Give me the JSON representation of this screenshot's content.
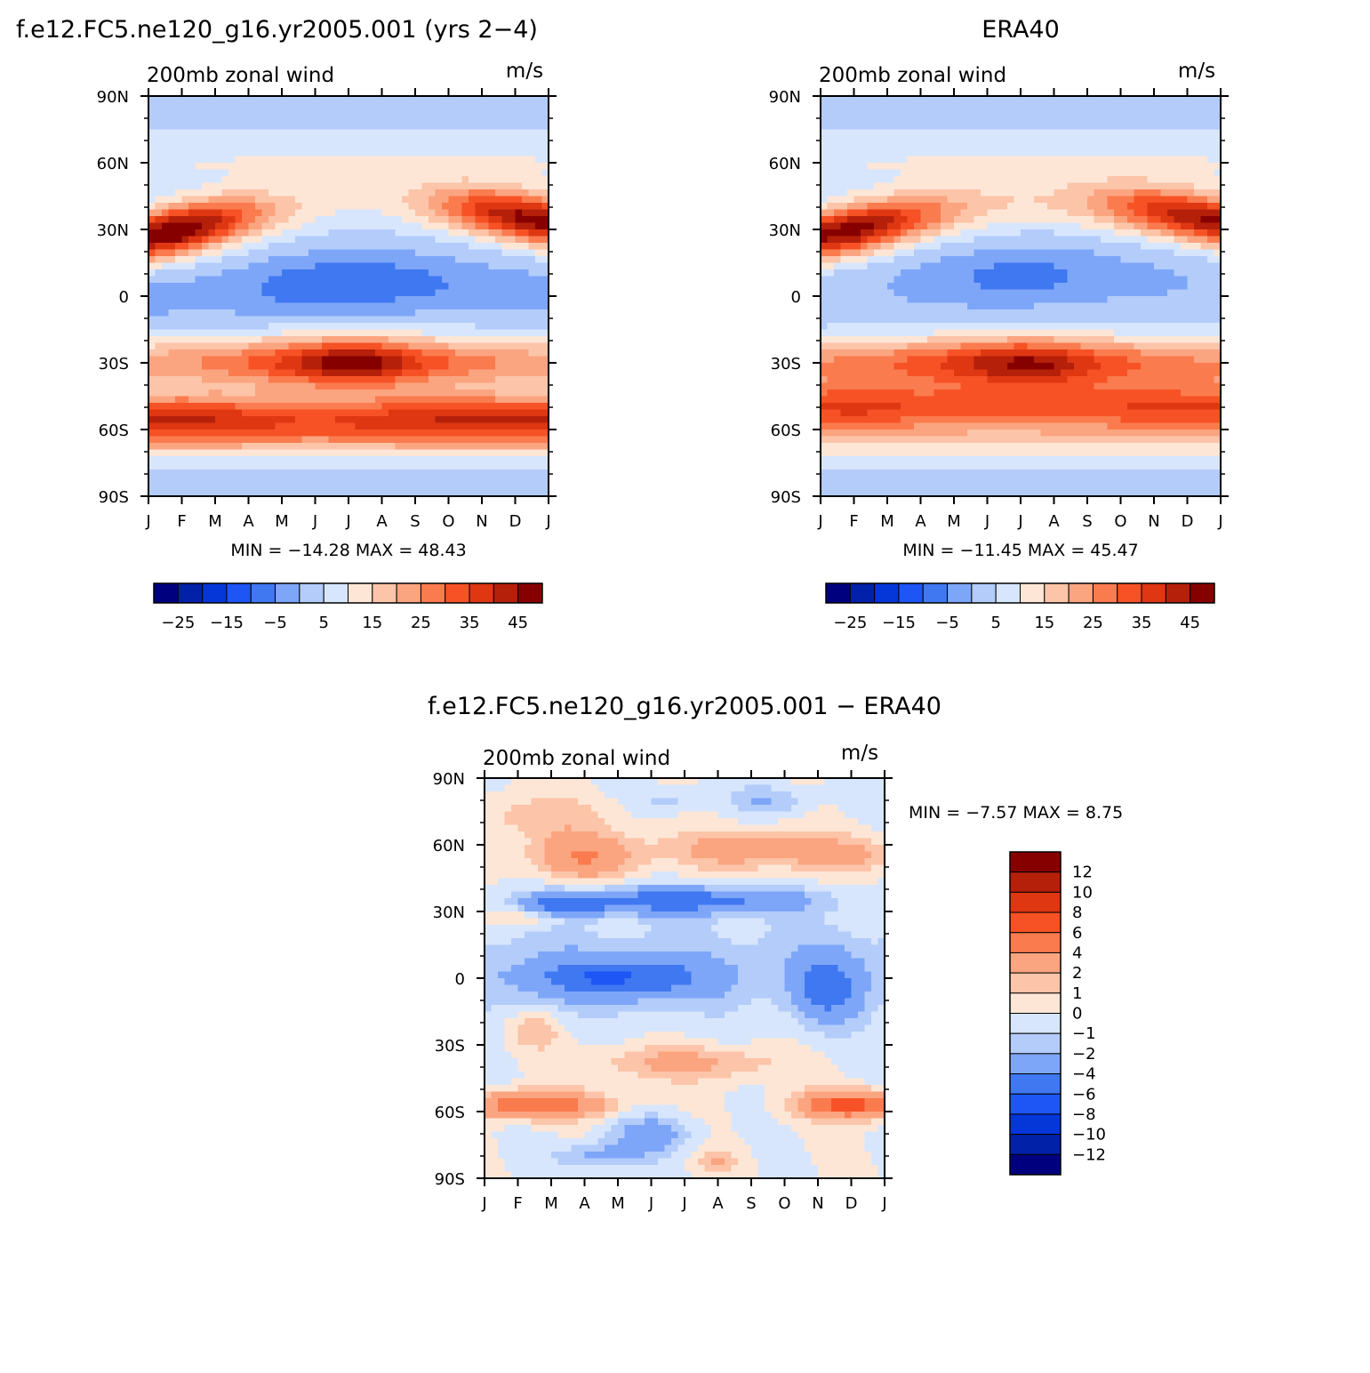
{
  "chart_data": [
    {
      "type": "heatmap",
      "title": "f.e12.FC5.ne120_g16.yr2005.001 (yrs 2−4)",
      "subtitle_left": "200mb zonal wind",
      "subtitle_right": "m/s",
      "xticks": [
        "J",
        "F",
        "M",
        "A",
        "M",
        "J",
        "J",
        "A",
        "S",
        "O",
        "N",
        "D",
        "J"
      ],
      "yticks": [
        "90N",
        "60N",
        "30N",
        "0",
        "30S",
        "60S",
        "90S"
      ],
      "ylim": [
        -90,
        90
      ],
      "stats": "MIN = −14.28 MAX =   48.43",
      "colorbar": {
        "orientation": "horizontal",
        "labels": [
          "−25",
          "−15",
          "−5",
          "5",
          "15",
          "25",
          "35",
          "45"
        ],
        "levels": [
          -30,
          -25,
          -20,
          -15,
          -10,
          -5,
          0,
          5,
          10,
          15,
          20,
          25,
          30,
          35,
          40,
          45,
          50
        ],
        "colors": [
          "#00007e",
          "#0021a8",
          "#0436d8",
          "#1e56f5",
          "#3f78f0",
          "#7ea6f8",
          "#b3ccfa",
          "#d7e6fd",
          "#fde6d6",
          "#fcc4a8",
          "#fba480",
          "#fa7b4e",
          "#f65225",
          "#de3712",
          "#b5200a",
          "#870000"
        ]
      },
      "field": {
        "jets": [
          {
            "lat": 30,
            "peak": 48,
            "month": 1.0,
            "strength_by_month": [
              44,
              48,
              38,
              25,
              14,
              8,
              6,
              7,
              12,
              22,
              34,
              42,
              44
            ]
          },
          {
            "lat": -30,
            "peak": 46,
            "month": 6.3,
            "strength_by_month": [
              18,
              20,
              22,
              26,
              32,
              40,
              46,
              42,
              32,
              26,
              22,
              20,
              18
            ]
          },
          {
            "lat": -55,
            "peak": 36,
            "month": 2.0,
            "strength_by_month": [
              33,
              34,
              33,
              30,
              28,
              27,
              28,
              30,
              32,
              33,
              34,
              33,
              33
            ]
          },
          {
            "lat": 0,
            "peak": -14,
            "month": 6.5,
            "strength_by_month": [
              -6,
              -5,
              -6,
              -8,
              -11,
              -13,
              -14,
              -13,
              -11,
              -9,
              -7,
              -6,
              -6
            ]
          }
        ]
      }
    },
    {
      "type": "heatmap",
      "title": "ERA40",
      "subtitle_left": "200mb zonal wind",
      "subtitle_right": "m/s",
      "xticks": [
        "J",
        "F",
        "M",
        "A",
        "M",
        "J",
        "J",
        "A",
        "S",
        "O",
        "N",
        "D",
        "J"
      ],
      "yticks": [
        "90N",
        "60N",
        "30N",
        "0",
        "30S",
        "60S",
        "90S"
      ],
      "ylim": [
        -90,
        90
      ],
      "stats": "MIN = −11.45 MAX =   45.47",
      "colorbar": {
        "orientation": "horizontal",
        "labels": [
          "−25",
          "−15",
          "−5",
          "5",
          "15",
          "25",
          "35",
          "45"
        ],
        "levels": [
          -30,
          -25,
          -20,
          -15,
          -10,
          -5,
          0,
          5,
          10,
          15,
          20,
          25,
          30,
          35,
          40,
          45,
          50
        ],
        "colors": [
          "#00007e",
          "#0021a8",
          "#0436d8",
          "#1e56f5",
          "#3f78f0",
          "#7ea6f8",
          "#b3ccfa",
          "#d7e6fd",
          "#fde6d6",
          "#fcc4a8",
          "#fba480",
          "#fa7b4e",
          "#f65225",
          "#de3712",
          "#b5200a",
          "#870000"
        ]
      },
      "field": {
        "jets": [
          {
            "lat": 30,
            "peak": 45,
            "month": 1.0,
            "strength_by_month": [
              42,
              45,
              38,
              27,
              18,
              12,
              10,
              11,
              16,
              24,
              34,
              40,
              42
            ]
          },
          {
            "lat": -30,
            "peak": 42,
            "month": 6.5,
            "strength_by_month": [
              20,
              22,
              24,
              27,
              32,
              38,
              42,
              40,
              32,
              27,
              23,
              21,
              20
            ]
          },
          {
            "lat": -50,
            "peak": 32,
            "month": 2.0,
            "strength_by_month": [
              30,
              31,
              30,
              28,
              27,
              26,
              26,
              27,
              28,
              29,
              30,
              30,
              30
            ]
          },
          {
            "lat": 3,
            "peak": -11,
            "month": 7.0,
            "strength_by_month": [
              -4,
              -3,
              -4,
              -6,
              -8,
              -10,
              -11,
              -10,
              -8,
              -6,
              -5,
              -4,
              -4
            ]
          }
        ]
      }
    },
    {
      "type": "heatmap",
      "title": "f.e12.FC5.ne120_g16.yr2005.001 − ERA40",
      "subtitle_left": "200mb zonal wind",
      "subtitle_right": "m/s",
      "xticks": [
        "J",
        "F",
        "M",
        "A",
        "M",
        "J",
        "J",
        "A",
        "S",
        "O",
        "N",
        "D",
        "J"
      ],
      "yticks": [
        "90N",
        "60N",
        "30N",
        "0",
        "30S",
        "60S",
        "90S"
      ],
      "ylim": [
        -90,
        90
      ],
      "stats": "MIN =   −7.57 MAX =    8.75",
      "colorbar": {
        "orientation": "vertical",
        "labels": [
          "12",
          "10",
          "8",
          "6",
          "4",
          "2",
          "1",
          "0",
          "−1",
          "−2",
          "−4",
          "−6",
          "−8",
          "−10",
          "−12"
        ],
        "levels": [
          -14,
          -12,
          -10,
          -8,
          -6,
          -4,
          -2,
          -1,
          0,
          1,
          2,
          4,
          6,
          8,
          10,
          12,
          14
        ],
        "colors": [
          "#00007e",
          "#0021a8",
          "#0436d8",
          "#1e56f5",
          "#3f78f0",
          "#7ea6f8",
          "#b3ccfa",
          "#d7e6fd",
          "#fde6d6",
          "#fcc4a8",
          "#fba480",
          "#fa7b4e",
          "#f65225",
          "#de3712",
          "#b5200a",
          "#870000"
        ]
      },
      "field": {
        "blobs": [
          {
            "month": 3.0,
            "lat": 55,
            "value": 4,
            "w": 1.6,
            "h": 10
          },
          {
            "month": 8.0,
            "lat": 58,
            "value": 3,
            "w": 2.5,
            "h": 9
          },
          {
            "month": 11.0,
            "lat": 55,
            "value": 2,
            "w": 1.5,
            "h": 8
          },
          {
            "month": 1.5,
            "lat": 73,
            "value": 1.5,
            "w": 2.5,
            "h": 10
          },
          {
            "month": 6.0,
            "lat": 35,
            "value": -5,
            "w": 3.5,
            "h": 6
          },
          {
            "month": 2.5,
            "lat": 33,
            "value": -4,
            "w": 1.2,
            "h": 5
          },
          {
            "month": 1.0,
            "lat": 27,
            "value": 2,
            "w": 1.3,
            "h": 4
          },
          {
            "month": 4.0,
            "lat": 0,
            "value": -5,
            "w": 2.6,
            "h": 9
          },
          {
            "month": 10.3,
            "lat": -5,
            "value": -4,
            "w": 1.0,
            "h": 15
          },
          {
            "month": 1.5,
            "lat": -24,
            "value": 2,
            "w": 0.8,
            "h": 8
          },
          {
            "month": 6.0,
            "lat": -38,
            "value": 2.5,
            "w": 2.8,
            "h": 8
          },
          {
            "month": 1.5,
            "lat": -57,
            "value": 6,
            "w": 2.0,
            "h": 6
          },
          {
            "month": 11.0,
            "lat": -57,
            "value": 7,
            "w": 1.5,
            "h": 6
          },
          {
            "month": 5.0,
            "lat": -70,
            "value": -3,
            "w": 1.2,
            "h": 8
          },
          {
            "month": 3.5,
            "lat": -80,
            "value": -2.5,
            "w": 1.4,
            "h": 6
          },
          {
            "month": 7.0,
            "lat": -82,
            "value": 2,
            "w": 0.6,
            "h": 5
          },
          {
            "month": 8.5,
            "lat": 80,
            "value": -2,
            "w": 1.2,
            "h": 7
          },
          {
            "month": 5.5,
            "lat": 80,
            "value": -1.5,
            "w": 1.0,
            "h": 6
          }
        ]
      }
    }
  ]
}
